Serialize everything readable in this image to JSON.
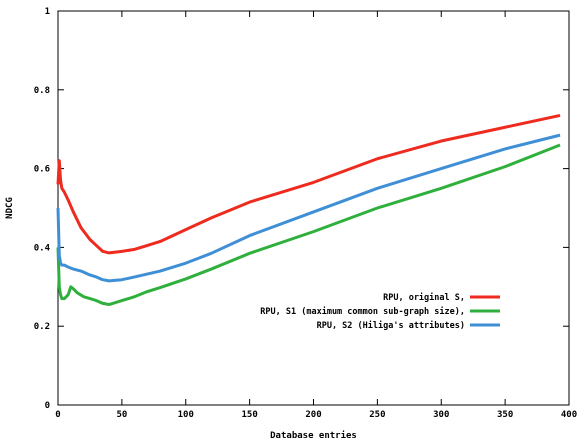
{
  "chart_data": {
    "type": "line",
    "title": "",
    "xlabel": "Database entries",
    "ylabel": "NDCG",
    "xlim": [
      0,
      400
    ],
    "ylim": [
      0,
      1
    ],
    "xticks": [
      0,
      50,
      100,
      150,
      200,
      250,
      300,
      350,
      400
    ],
    "yticks": [
      0,
      0.2,
      0.4,
      0.6,
      0.8,
      1
    ],
    "ytick_labels": [
      "0",
      "0.2",
      "0.4",
      "0.6",
      "0.8",
      "1"
    ],
    "grid": false,
    "legend_position": "right",
    "series": [
      {
        "name": "RPU, original S,",
        "color": "#ee2b1e",
        "x": [
          0,
          1,
          2,
          3,
          5,
          8,
          12,
          18,
          25,
          30,
          35,
          40,
          50,
          60,
          70,
          80,
          100,
          120,
          150,
          200,
          250,
          300,
          350,
          393
        ],
        "y": [
          0.56,
          0.62,
          0.57,
          0.55,
          0.54,
          0.52,
          0.49,
          0.45,
          0.42,
          0.405,
          0.39,
          0.386,
          0.39,
          0.395,
          0.405,
          0.415,
          0.445,
          0.475,
          0.515,
          0.565,
          0.625,
          0.67,
          0.705,
          0.735
        ]
      },
      {
        "name": "RPU, S1 (maximum common sub-graph size),",
        "color": "#2fb03c",
        "x": [
          0,
          1,
          2,
          3,
          5,
          8,
          10,
          12,
          15,
          20,
          25,
          30,
          35,
          40,
          50,
          60,
          70,
          80,
          100,
          120,
          150,
          200,
          250,
          300,
          350,
          393
        ],
        "y": [
          0.4,
          0.3,
          0.28,
          0.27,
          0.27,
          0.28,
          0.3,
          0.295,
          0.285,
          0.275,
          0.27,
          0.265,
          0.258,
          0.255,
          0.265,
          0.275,
          0.288,
          0.298,
          0.32,
          0.345,
          0.385,
          0.44,
          0.5,
          0.55,
          0.605,
          0.66
        ]
      },
      {
        "name": "RPU, S2 (Hiliga's attributes)",
        "color": "#3f8fd6",
        "x": [
          0,
          1,
          2,
          3,
          5,
          8,
          12,
          18,
          25,
          30,
          35,
          40,
          50,
          60,
          80,
          100,
          120,
          150,
          200,
          250,
          300,
          350,
          393
        ],
        "y": [
          0.5,
          0.38,
          0.36,
          0.355,
          0.355,
          0.35,
          0.345,
          0.34,
          0.33,
          0.325,
          0.318,
          0.315,
          0.318,
          0.325,
          0.34,
          0.36,
          0.385,
          0.43,
          0.49,
          0.55,
          0.6,
          0.65,
          0.685
        ]
      }
    ]
  }
}
